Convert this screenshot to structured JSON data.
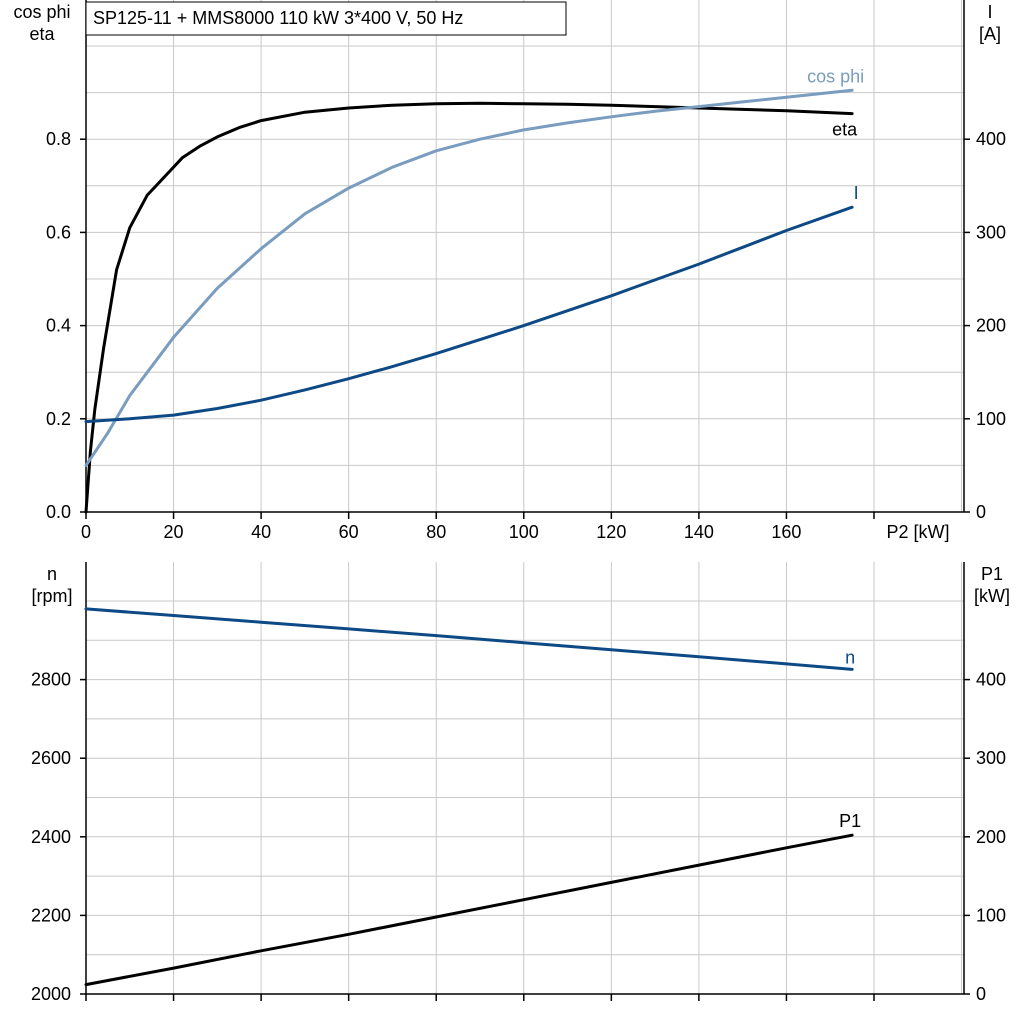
{
  "title": "SP125-11 + MMS8000   110 kW   3*400 V, 50 Hz",
  "colors": {
    "eta": "#000000",
    "cos_phi": "#7a9cbf",
    "current": "#0d4a85",
    "speed": "#0d4a85",
    "p1": "#000000"
  },
  "chart_data": [
    {
      "type": "line",
      "panel": "top",
      "xlabel": "P2 [kW]",
      "ylabel_left": "cos phi\neta",
      "ylabel_right": "I\n[A]",
      "xlim": [
        0,
        180
      ],
      "ylim_left": [
        0,
        1.0
      ],
      "ylim_right": [
        0,
        500
      ],
      "x_ticks": [
        0,
        20,
        40,
        60,
        80,
        100,
        120,
        140,
        160
      ],
      "y_ticks_left": [
        0.0,
        0.2,
        0.4,
        0.6,
        0.8
      ],
      "y_tick_labels_left": [
        "0.0",
        "0.2",
        "0.4",
        "0.6",
        "0.8"
      ],
      "y_ticks_right": [
        0,
        100,
        200,
        300,
        400
      ],
      "grid": true,
      "series": [
        {
          "name": "eta",
          "axis": "left",
          "color_key": "eta",
          "x": [
            0,
            1,
            2,
            4,
            7,
            10,
            14,
            18,
            22,
            26,
            30,
            35,
            40,
            50,
            60,
            70,
            80,
            90,
            100,
            110,
            120,
            130,
            140,
            150,
            160,
            175
          ],
          "y": [
            0.0,
            0.13,
            0.22,
            0.35,
            0.52,
            0.61,
            0.68,
            0.72,
            0.76,
            0.785,
            0.805,
            0.825,
            0.84,
            0.858,
            0.867,
            0.873,
            0.876,
            0.877,
            0.876,
            0.875,
            0.873,
            0.87,
            0.867,
            0.864,
            0.861,
            0.855
          ]
        },
        {
          "name": "cos phi",
          "axis": "left",
          "color_key": "cos_phi",
          "x": [
            0,
            5,
            10,
            20,
            30,
            40,
            50,
            60,
            70,
            80,
            90,
            100,
            110,
            120,
            130,
            140,
            150,
            160,
            175
          ],
          "y": [
            0.1,
            0.17,
            0.25,
            0.375,
            0.48,
            0.565,
            0.64,
            0.695,
            0.74,
            0.775,
            0.8,
            0.82,
            0.835,
            0.848,
            0.86,
            0.87,
            0.88,
            0.89,
            0.905
          ]
        },
        {
          "name": "I",
          "axis": "right",
          "color_key": "current",
          "x": [
            0,
            10,
            20,
            30,
            40,
            50,
            60,
            70,
            80,
            90,
            100,
            110,
            120,
            130,
            140,
            150,
            160,
            175
          ],
          "y": [
            97,
            100,
            104,
            111,
            120,
            131,
            143,
            156,
            170,
            185,
            200,
            216,
            232,
            249,
            266,
            284,
            302,
            327
          ]
        }
      ]
    },
    {
      "type": "line",
      "panel": "bottom",
      "ylabel_left": "n\n[rpm]",
      "ylabel_right": "P1\n[kW]",
      "xlim": [
        0,
        180
      ],
      "ylim_left": [
        2000,
        3000
      ],
      "ylim_right": [
        0,
        500
      ],
      "y_ticks_left": [
        2000,
        2200,
        2400,
        2600,
        2800
      ],
      "y_ticks_right": [
        0,
        100,
        200,
        300,
        400
      ],
      "grid": true,
      "series": [
        {
          "name": "n",
          "axis": "left",
          "color_key": "speed",
          "x": [
            0,
            20,
            40,
            60,
            80,
            100,
            120,
            140,
            160,
            175
          ],
          "y": [
            2980,
            2963,
            2946,
            2929,
            2912,
            2894,
            2876,
            2858,
            2840,
            2826
          ]
        },
        {
          "name": "P1",
          "axis": "right",
          "color_key": "p1",
          "x": [
            0,
            20,
            40,
            60,
            80,
            100,
            120,
            140,
            160,
            175
          ],
          "y": [
            12,
            33,
            55,
            76,
            98,
            120,
            142,
            164,
            186,
            202
          ]
        }
      ]
    }
  ]
}
